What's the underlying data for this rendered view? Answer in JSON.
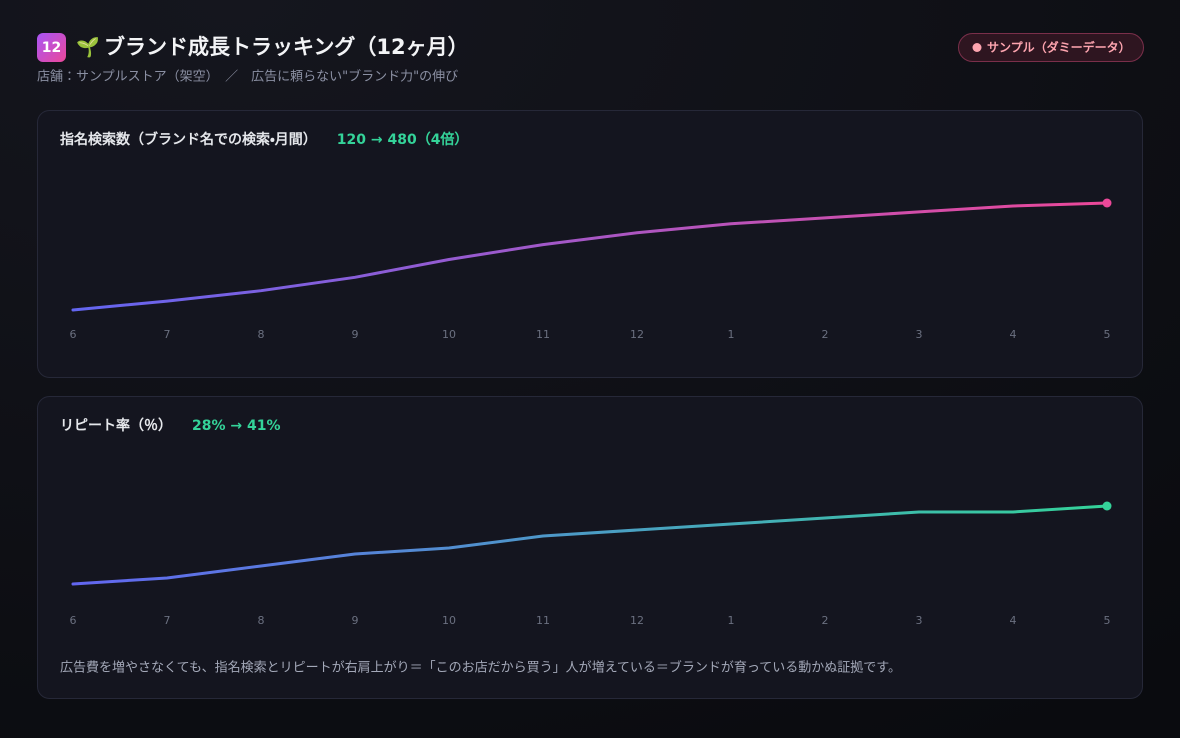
{
  "header": {
    "badge": "12",
    "icon": "🌱",
    "title": "ブランド成長トラッキング（12ヶ月）",
    "subtitle": "店舗：サンプルストア（架空）　／　広告に頼らない\"ブランド力\"の伸び",
    "tag": "サンプル（ダミーデータ）"
  },
  "chart_data": [
    {
      "type": "line",
      "title": "指名検索数（ブランド名での検索・月間）",
      "highlight": "120 → 480（4倍）",
      "categories": [
        "6",
        "7",
        "8",
        "9",
        "10",
        "11",
        "12",
        "1",
        "2",
        "3",
        "4",
        "5"
      ],
      "values": [
        120,
        150,
        185,
        230,
        290,
        340,
        380,
        410,
        430,
        450,
        470,
        480
      ],
      "gradient": [
        "#6366f1",
        "#ec4899"
      ]
    },
    {
      "type": "line",
      "title": "リピート率（％）",
      "highlight": "28% → 41%",
      "categories": [
        "6",
        "7",
        "8",
        "9",
        "10",
        "11",
        "12",
        "1",
        "2",
        "3",
        "4",
        "5"
      ],
      "values": [
        28,
        29,
        31,
        33,
        34,
        36,
        37,
        38,
        39,
        40,
        40,
        41
      ],
      "gradient": [
        "#6366f1",
        "#34d399"
      ]
    }
  ],
  "note": "広告費を増やさなくても、指名検索とリピートが右肩上がり＝「このお店だから買う」人が増えている＝ブランドが育っている動かぬ証拠です。"
}
